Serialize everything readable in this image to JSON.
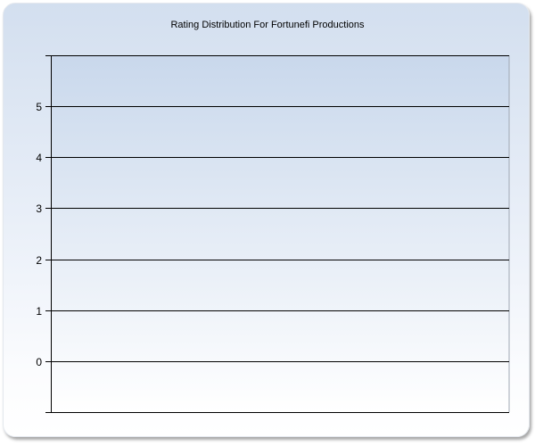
{
  "chart_data": {
    "type": "bar",
    "title": "Rating Distribution For Fortunefi Productions",
    "xlabel": "",
    "ylabel": "",
    "ylim": [
      -1,
      6
    ],
    "yticks": [
      0,
      1,
      2,
      3,
      4,
      5
    ],
    "ytick_labels": [
      "0",
      "1",
      "2",
      "3",
      "4",
      "5"
    ],
    "categories": [],
    "values": [],
    "grid": true,
    "colors": {
      "plot_top": "#c9d8ec",
      "plot_bottom": "#ffffff",
      "grid": "#000000"
    }
  }
}
